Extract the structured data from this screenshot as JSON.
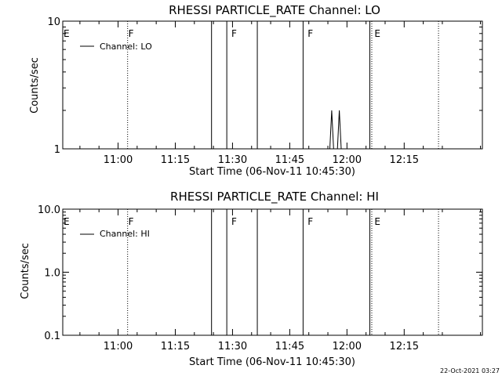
{
  "chart_data": [
    {
      "type": "line",
      "title": "RHESSI PARTICLE_RATE Channel: LO",
      "xlabel": "Start Time (06-Nov-11 10:45:30)",
      "ylabel": "Counts/sec",
      "yscale": "log",
      "ylim": [
        1,
        10
      ],
      "ytick_labels": [
        "10",
        "1"
      ],
      "xlim": [
        "10:45:30",
        "12:35:30"
      ],
      "x_ticks": [
        "11:00",
        "11:15",
        "11:30",
        "11:45",
        "12:00",
        "12:15"
      ],
      "legend": {
        "position": "top-left",
        "entries": [
          "Channel: LO"
        ]
      },
      "series": [
        {
          "name": "Channel: LO",
          "x": [
            "10:45:30",
            "11:55:30",
            "11:56:00",
            "11:56:30",
            "11:57:30",
            "11:58:00",
            "11:58:30",
            "12:35:30"
          ],
          "y": [
            1,
            1,
            2,
            1,
            1,
            2,
            1,
            1
          ]
        }
      ],
      "flag_labels": [
        {
          "text": "E",
          "time": "10:45:30"
        },
        {
          "text": "F",
          "time": "11:02:30"
        },
        {
          "text": "F",
          "time": "11:29:30"
        },
        {
          "text": "F",
          "time": "11:49:30"
        },
        {
          "text": "E",
          "time": "12:07:00"
        }
      ]
    },
    {
      "type": "line",
      "title": "RHESSI PARTICLE_RATE Channel: HI",
      "xlabel": "Start Time (06-Nov-11 10:45:30)",
      "ylabel": "Counts/sec",
      "yscale": "log",
      "ylim": [
        0.1,
        10
      ],
      "ytick_labels": [
        "10.0",
        "1.0",
        "0.1"
      ],
      "xlim": [
        "10:45:30",
        "12:35:30"
      ],
      "x_ticks": [
        "11:00",
        "11:15",
        "11:30",
        "11:45",
        "12:00",
        "12:15"
      ],
      "legend": {
        "position": "top-left",
        "entries": [
          "Channel: HI"
        ]
      },
      "series": [
        {
          "name": "Channel: HI",
          "x": [],
          "y": []
        }
      ],
      "flag_labels": [
        {
          "text": "E",
          "time": "10:45:30"
        },
        {
          "text": "F",
          "time": "11:02:30"
        },
        {
          "text": "F",
          "time": "11:29:30"
        },
        {
          "text": "F",
          "time": "11:49:30"
        },
        {
          "text": "E",
          "time": "12:07:00"
        }
      ]
    }
  ],
  "vertical_markers": {
    "dotted": [
      "11:02:30",
      "12:06:30",
      "12:24:00"
    ],
    "solid": [
      "11:24:30",
      "11:28:30",
      "11:36:30",
      "11:48:30",
      "12:06:00"
    ]
  },
  "timestamp": "22-Oct-2021 03:27",
  "colors": {
    "background": "#ffffff",
    "foreground": "#000000"
  }
}
